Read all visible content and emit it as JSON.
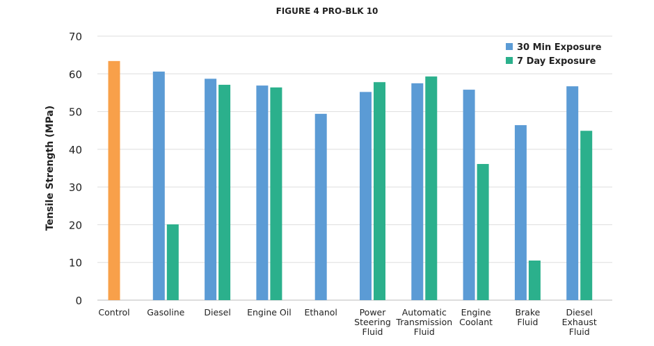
{
  "chart_data": {
    "type": "bar",
    "title": "FIGURE 4 PRO-BLK 10",
    "xlabel": "",
    "ylabel": "Tensile Strength (MPa)",
    "ylim": [
      0,
      70
    ],
    "yticks": [
      0,
      10,
      20,
      30,
      40,
      50,
      60,
      70
    ],
    "grid": true,
    "legend_placement": "top-right",
    "categories": [
      [
        "Control"
      ],
      [
        "Gasoline"
      ],
      [
        "Diesel"
      ],
      [
        "Engine Oil"
      ],
      [
        "Ethanol"
      ],
      [
        "Power",
        "Steering",
        "Fluid"
      ],
      [
        "Automatic",
        "Transmission",
        "Fluid"
      ],
      [
        "Engine",
        "Coolant"
      ],
      [
        "Brake",
        "Fluid"
      ],
      [
        "Diesel",
        "Exhaust",
        "Fluid"
      ]
    ],
    "control": {
      "value": 63.4,
      "color": "#F8A04A"
    },
    "series": [
      {
        "name": "30 Min Exposure",
        "color": "#5B9BD5",
        "values": [
          null,
          60.6,
          58.7,
          56.9,
          49.4,
          55.2,
          57.5,
          55.8,
          46.4,
          56.7
        ]
      },
      {
        "name": "7 Day Exposure",
        "color": "#2BB08C",
        "values": [
          null,
          20.1,
          57.1,
          56.4,
          null,
          57.8,
          59.3,
          36.1,
          10.5,
          44.9
        ]
      }
    ]
  }
}
